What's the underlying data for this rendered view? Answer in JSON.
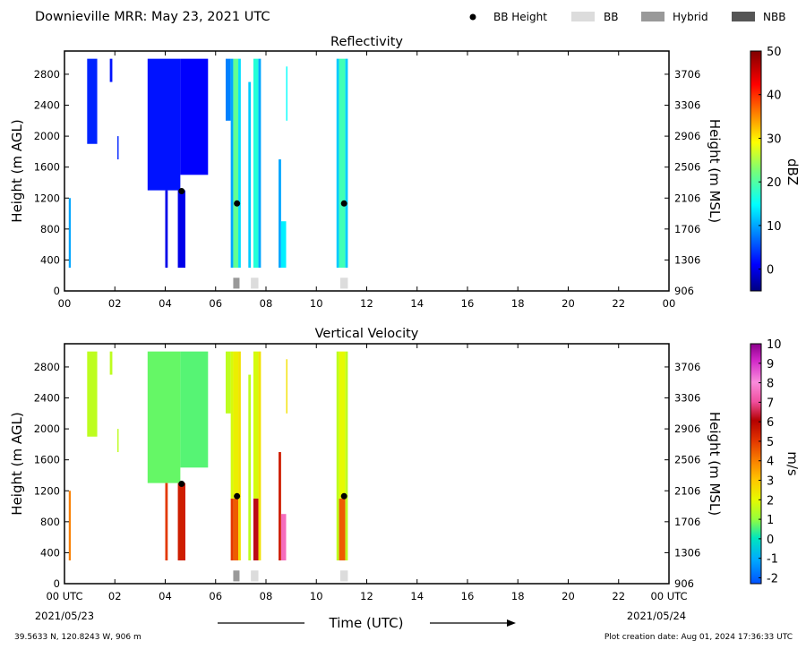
{
  "header": {
    "title": "Downieville MRR:  May 23, 2021 UTC",
    "legend": [
      {
        "label": "BB Height",
        "kind": "dot",
        "color": "#000000"
      },
      {
        "label": "BB",
        "kind": "box",
        "color": "#dcdcdc"
      },
      {
        "label": "Hybrid",
        "kind": "box",
        "color": "#999999"
      },
      {
        "label": "NBB",
        "kind": "box",
        "color": "#555555"
      }
    ]
  },
  "footer": {
    "location": "39.5633 N, 120.8243 W, 906 m",
    "plot_date": "Plot creation date: Aug 01, 2024 17:36:33 UTC",
    "xlabel": "Time (UTC)",
    "start_date": "2021/05/23",
    "end_date": "2021/05/24"
  },
  "chart_data": [
    {
      "type": "heatmap",
      "title": "Reflectivity",
      "ylabel": "Height (m AGL)",
      "ylabel_right": "Height (m MSL)",
      "colorbar_label": "dBZ",
      "colorbar_ticks": [
        0,
        10,
        20,
        30,
        40,
        50
      ],
      "colorbar_range": [
        -5,
        50
      ],
      "x_ticks": [
        "00",
        "02",
        "04",
        "06",
        "08",
        "10",
        "12",
        "14",
        "16",
        "18",
        "20",
        "22",
        "00"
      ],
      "y_ticks": [
        0,
        400,
        800,
        1200,
        1600,
        2000,
        2400,
        2800
      ],
      "y_ticks_right": [
        "906",
        "1306",
        "1706",
        "2106",
        "2506",
        "2906",
        "3306",
        "3706"
      ],
      "xlim": [
        0,
        24
      ],
      "ylim": [
        0,
        3100
      ],
      "bb_height": [
        {
          "t": 4.65,
          "h": 1290
        },
        {
          "t": 6.85,
          "h": 1130
        },
        {
          "t": 11.1,
          "h": 1130
        }
      ],
      "bb_class": [
        {
          "t0": 6.7,
          "t1": 6.95,
          "class": "Hybrid"
        },
        {
          "t0": 7.4,
          "t1": 7.7,
          "class": "BB"
        },
        {
          "t0": 10.95,
          "t1": 11.25,
          "class": "BB"
        }
      ],
      "echoes": [
        {
          "t0": 0.17,
          "t1": 0.25,
          "h0": 300,
          "h1": 1200,
          "v": 10
        },
        {
          "t0": 0.9,
          "t1": 1.3,
          "h0": 1900,
          "h1": 3000,
          "v": 3
        },
        {
          "t0": 1.8,
          "t1": 1.9,
          "h0": 2700,
          "h1": 3000,
          "v": 2
        },
        {
          "t0": 2.1,
          "t1": 2.15,
          "h0": 1700,
          "h1": 2000,
          "v": 3
        },
        {
          "t0": 3.3,
          "t1": 4.6,
          "h0": 1300,
          "h1": 3000,
          "v": 2
        },
        {
          "t0": 4.0,
          "t1": 4.1,
          "h0": 300,
          "h1": 1300,
          "v": 0
        },
        {
          "t0": 4.5,
          "t1": 4.8,
          "h0": 300,
          "h1": 1300,
          "v": 0
        },
        {
          "t0": 4.6,
          "t1": 5.7,
          "h0": 1500,
          "h1": 3000,
          "v": 1
        },
        {
          "t0": 6.4,
          "t1": 6.6,
          "h0": 2200,
          "h1": 3000,
          "v": 8
        },
        {
          "t0": 6.6,
          "t1": 6.7,
          "h0": 300,
          "h1": 3000,
          "v": 10
        },
        {
          "t0": 6.7,
          "t1": 6.9,
          "h0": 300,
          "h1": 3000,
          "v": 21
        },
        {
          "t0": 6.9,
          "t1": 7.0,
          "h0": 300,
          "h1": 3000,
          "v": 13
        },
        {
          "t0": 7.3,
          "t1": 7.4,
          "h0": 300,
          "h1": 2700,
          "v": 12
        },
        {
          "t0": 7.5,
          "t1": 7.7,
          "h0": 300,
          "h1": 3000,
          "v": 17
        },
        {
          "t0": 7.7,
          "t1": 7.8,
          "h0": 300,
          "h1": 3000,
          "v": 10
        },
        {
          "t0": 8.5,
          "t1": 8.6,
          "h0": 300,
          "h1": 1700,
          "v": 10
        },
        {
          "t0": 8.6,
          "t1": 8.8,
          "h0": 300,
          "h1": 900,
          "v": 14
        },
        {
          "t0": 8.8,
          "t1": 8.85,
          "h0": 2200,
          "h1": 2900,
          "v": 15
        },
        {
          "t0": 10.8,
          "t1": 10.9,
          "h0": 300,
          "h1": 3000,
          "v": 12
        },
        {
          "t0": 10.9,
          "t1": 11.15,
          "h0": 300,
          "h1": 3000,
          "v": 19
        },
        {
          "t0": 11.15,
          "t1": 11.25,
          "h0": 300,
          "h1": 3000,
          "v": 12
        }
      ]
    },
    {
      "type": "heatmap",
      "title": "Vertical Velocity",
      "ylabel": "Height (m AGL)",
      "ylabel_right": "Height (m MSL)",
      "colorbar_label": "m/s",
      "colorbar_ticks": [
        -2,
        -1,
        0,
        1,
        2,
        3,
        4,
        5,
        6,
        7,
        8,
        9,
        10
      ],
      "colorbar_range": [
        -2.3,
        10
      ],
      "x_ticks": [
        "00 UTC",
        "02",
        "04",
        "06",
        "08",
        "10",
        "12",
        "14",
        "16",
        "18",
        "20",
        "22",
        "00 UTC"
      ],
      "y_ticks": [
        0,
        400,
        800,
        1200,
        1600,
        2000,
        2400,
        2800
      ],
      "y_ticks_right": [
        "906",
        "1306",
        "1706",
        "2106",
        "2506",
        "2906",
        "3306",
        "3706"
      ],
      "xlim": [
        0,
        24
      ],
      "ylim": [
        0,
        3100
      ],
      "bb_height": [
        {
          "t": 4.65,
          "h": 1290
        },
        {
          "t": 6.85,
          "h": 1130
        },
        {
          "t": 11.1,
          "h": 1130
        }
      ],
      "bb_class": [
        {
          "t0": 6.7,
          "t1": 6.95,
          "class": "Hybrid"
        },
        {
          "t0": 7.4,
          "t1": 7.7,
          "class": "BB"
        },
        {
          "t0": 10.95,
          "t1": 11.25,
          "class": "BB"
        }
      ],
      "echoes": [
        {
          "t0": 0.17,
          "t1": 0.25,
          "h0": 300,
          "h1": 1200,
          "v": 4
        },
        {
          "t0": 0.9,
          "t1": 1.3,
          "h0": 1900,
          "h1": 3000,
          "v": 1.5
        },
        {
          "t0": 1.8,
          "t1": 1.9,
          "h0": 2700,
          "h1": 3000,
          "v": 1.5
        },
        {
          "t0": 2.1,
          "t1": 2.15,
          "h0": 1700,
          "h1": 2000,
          "v": 1.5
        },
        {
          "t0": 3.3,
          "t1": 4.6,
          "h0": 1300,
          "h1": 3000,
          "v": 0.7
        },
        {
          "t0": 4.0,
          "t1": 4.1,
          "h0": 300,
          "h1": 1300,
          "v": 5
        },
        {
          "t0": 4.5,
          "t1": 4.8,
          "h0": 300,
          "h1": 1300,
          "v": 5.5
        },
        {
          "t0": 4.6,
          "t1": 5.7,
          "h0": 1500,
          "h1": 3000,
          "v": 0.6
        },
        {
          "t0": 6.4,
          "t1": 6.6,
          "h0": 2200,
          "h1": 3000,
          "v": 1.5
        },
        {
          "t0": 6.6,
          "t1": 6.7,
          "h0": 300,
          "h1": 1100,
          "v": 5
        },
        {
          "t0": 6.6,
          "t1": 6.7,
          "h0": 1100,
          "h1": 3000,
          "v": 1.8
        },
        {
          "t0": 6.7,
          "t1": 6.9,
          "h0": 300,
          "h1": 1100,
          "v": 4.5
        },
        {
          "t0": 6.7,
          "t1": 6.9,
          "h0": 1100,
          "h1": 3000,
          "v": 2.2
        },
        {
          "t0": 6.9,
          "t1": 7.0,
          "h0": 300,
          "h1": 3000,
          "v": 2.5
        },
        {
          "t0": 7.3,
          "t1": 7.4,
          "h0": 300,
          "h1": 2700,
          "v": 1.5
        },
        {
          "t0": 7.5,
          "t1": 7.7,
          "h0": 300,
          "h1": 1100,
          "v": 6.2
        },
        {
          "t0": 7.5,
          "t1": 7.7,
          "h0": 1100,
          "h1": 3000,
          "v": 1.8
        },
        {
          "t0": 7.7,
          "t1": 7.8,
          "h0": 300,
          "h1": 3000,
          "v": 2.5
        },
        {
          "t0": 8.5,
          "t1": 8.6,
          "h0": 300,
          "h1": 1700,
          "v": 5.5
        },
        {
          "t0": 8.6,
          "t1": 8.8,
          "h0": 300,
          "h1": 900,
          "v": 7.5
        },
        {
          "t0": 8.8,
          "t1": 8.85,
          "h0": 2200,
          "h1": 2900,
          "v": 2.5
        },
        {
          "t0": 10.8,
          "t1": 10.9,
          "h0": 300,
          "h1": 3000,
          "v": 1.5
        },
        {
          "t0": 10.9,
          "t1": 11.15,
          "h0": 300,
          "h1": 1100,
          "v": 4.5
        },
        {
          "t0": 10.9,
          "t1": 11.15,
          "h0": 1100,
          "h1": 3000,
          "v": 2
        },
        {
          "t0": 11.15,
          "t1": 11.25,
          "h0": 300,
          "h1": 3000,
          "v": 1.5
        }
      ]
    }
  ]
}
